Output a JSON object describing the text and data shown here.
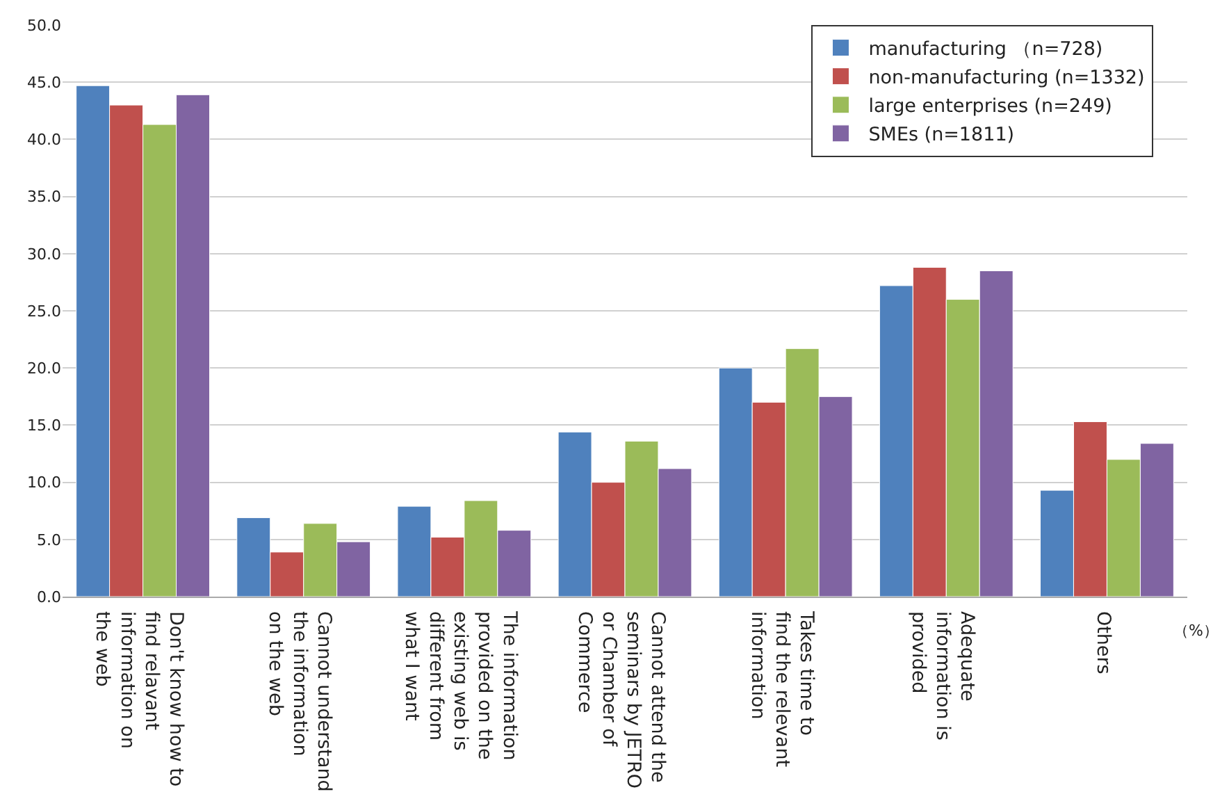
{
  "chart_data": {
    "type": "bar",
    "categories": [
      "Don't know how to find relavant information on the web",
      "Cannot understand the information on the web",
      "The information provided on the existing web is different from what I want",
      "Cannot attend the seminars by JETRO or Chamber of Commerce",
      "Takes time to find the relevant information",
      "Adequate information is provided",
      "Others"
    ],
    "series": [
      {
        "name": "manufacturing （n=728)",
        "color": "#4f81bd",
        "values": [
          44.7,
          6.9,
          7.9,
          14.4,
          20.0,
          27.2,
          9.3
        ]
      },
      {
        "name": "non-manufacturing (n=1332)",
        "color": "#c0504d",
        "values": [
          43.0,
          3.9,
          5.2,
          10.0,
          17.0,
          28.8,
          15.3
        ]
      },
      {
        "name": "large enterprises (n=249)",
        "color": "#9bbb59",
        "values": [
          41.3,
          6.4,
          8.4,
          13.6,
          21.7,
          26.0,
          12.0
        ]
      },
      {
        "name": "SMEs (n=1811)",
        "color": "#8064a2",
        "values": [
          43.9,
          4.8,
          5.8,
          11.2,
          17.5,
          28.5,
          13.4
        ]
      }
    ],
    "ylim": [
      0,
      50
    ],
    "yticks": [
      {
        "value": 0,
        "label": "0.0"
      },
      {
        "value": 5,
        "label": "5.0"
      },
      {
        "value": 10,
        "label": "10.0"
      },
      {
        "value": 15,
        "label": "15.0"
      },
      {
        "value": 20,
        "label": "20.0"
      },
      {
        "value": 25,
        "label": "25.0"
      },
      {
        "value": 30,
        "label": "30.0"
      },
      {
        "value": 35,
        "label": "35.0"
      },
      {
        "value": 40,
        "label": "40.0"
      },
      {
        "value": 45,
        "label": "45.0"
      },
      {
        "value": 50,
        "label": "50.0"
      }
    ],
    "annotations": [
      "（%）"
    ],
    "grid": "y",
    "legend": "top right"
  }
}
